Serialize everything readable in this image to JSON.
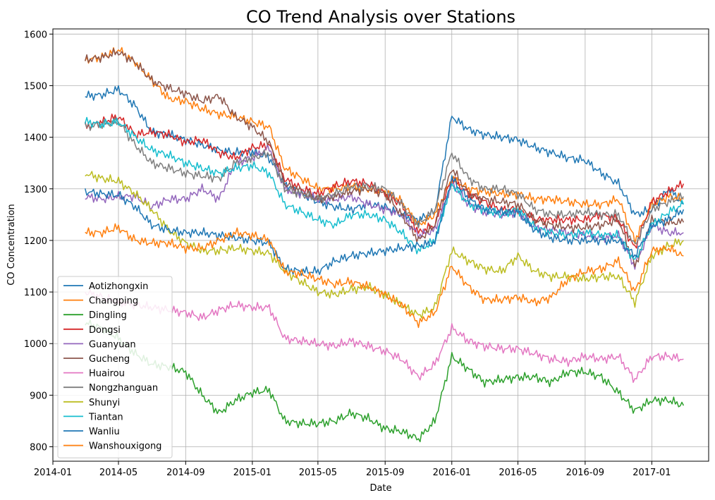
{
  "chart_data": {
    "type": "line",
    "title": "CO Trend Analysis over Stations",
    "xlabel": "Date",
    "ylabel": "CO Concentration",
    "x_ticks": [
      "2014-01",
      "2014-05",
      "2014-09",
      "2015-01",
      "2015-05",
      "2015-09",
      "2016-01",
      "2016-05",
      "2016-09",
      "2017-01"
    ],
    "y_ticks": [
      800,
      900,
      1000,
      1100,
      1200,
      1300,
      1400,
      1500,
      1600
    ],
    "xlim": [
      "2014-01-01",
      "2017-04-15"
    ],
    "ylim": [
      772,
      1610
    ],
    "grid": true,
    "legend_position": "lower-left",
    "x": [
      "2014-03-01",
      "2014-04-01",
      "2014-05-01",
      "2014-06-01",
      "2014-07-01",
      "2014-08-01",
      "2014-09-01",
      "2014-10-01",
      "2014-11-01",
      "2014-12-01",
      "2015-01-01",
      "2015-02-01",
      "2015-03-01",
      "2015-04-01",
      "2015-05-01",
      "2015-06-01",
      "2015-07-01",
      "2015-08-01",
      "2015-09-01",
      "2015-10-01",
      "2015-11-01",
      "2015-12-01",
      "2016-01-01",
      "2016-02-01",
      "2016-03-01",
      "2016-04-01",
      "2016-05-01",
      "2016-06-01",
      "2016-07-01",
      "2016-08-01",
      "2016-09-01",
      "2016-10-01",
      "2016-11-01",
      "2016-12-01",
      "2017-01-01",
      "2017-02-01",
      "2017-02-28"
    ],
    "series": [
      {
        "name": "Aotizhongxin",
        "color": "#1f77b4",
        "values": [
          1480,
          1482,
          1493,
          1460,
          1410,
          1405,
          1395,
          1385,
          1375,
          1370,
          1372,
          1360,
          1310,
          1290,
          1275,
          1265,
          1260,
          1270,
          1265,
          1250,
          1240,
          1255,
          1440,
          1415,
          1405,
          1400,
          1395,
          1380,
          1370,
          1360,
          1355,
          1330,
          1310,
          1250,
          1260,
          1300,
          1270
        ]
      },
      {
        "name": "Changping",
        "color": "#ff7f0e",
        "values": [
          1550,
          1555,
          1570,
          1545,
          1510,
          1475,
          1470,
          1455,
          1445,
          1440,
          1430,
          1420,
          1340,
          1320,
          1300,
          1300,
          1305,
          1300,
          1295,
          1275,
          1230,
          1250,
          1320,
          1300,
          1295,
          1290,
          1290,
          1280,
          1280,
          1275,
          1270,
          1270,
          1280,
          1200,
          1270,
          1285,
          1280
        ]
      },
      {
        "name": "Dingling",
        "color": "#2ca02c",
        "values": [
          1040,
          1030,
          1010,
          980,
          960,
          955,
          945,
          900,
          865,
          890,
          905,
          910,
          850,
          845,
          845,
          850,
          865,
          855,
          835,
          830,
          815,
          850,
          975,
          950,
          925,
          930,
          935,
          935,
          925,
          945,
          945,
          935,
          905,
          870,
          890,
          890,
          880
        ]
      },
      {
        "name": "Dongsi",
        "color": "#d62728",
        "values": [
          1420,
          1430,
          1440,
          1405,
          1410,
          1405,
          1390,
          1395,
          1370,
          1360,
          1380,
          1385,
          1320,
          1300,
          1290,
          1305,
          1315,
          1310,
          1290,
          1270,
          1215,
          1230,
          1320,
          1290,
          1275,
          1260,
          1260,
          1240,
          1240,
          1240,
          1240,
          1250,
          1240,
          1185,
          1275,
          1295,
          1310
        ]
      },
      {
        "name": "Guanyuan",
        "color": "#9467bd",
        "values": [
          1285,
          1280,
          1285,
          1285,
          1265,
          1280,
          1280,
          1300,
          1280,
          1350,
          1360,
          1380,
          1300,
          1290,
          1280,
          1280,
          1285,
          1270,
          1260,
          1250,
          1210,
          1220,
          1310,
          1270,
          1255,
          1250,
          1255,
          1225,
          1220,
          1215,
          1210,
          1205,
          1210,
          1150,
          1230,
          1215,
          1215
        ]
      },
      {
        "name": "Gucheng",
        "color": "#8c564b",
        "values": [
          1550,
          1555,
          1565,
          1545,
          1510,
          1495,
          1485,
          1470,
          1480,
          1440,
          1420,
          1390,
          1310,
          1295,
          1280,
          1285,
          1295,
          1300,
          1290,
          1250,
          1200,
          1230,
          1340,
          1290,
          1280,
          1275,
          1270,
          1240,
          1230,
          1225,
          1225,
          1230,
          1240,
          1150,
          1240,
          1235,
          1235
        ]
      },
      {
        "name": "Huairou",
        "color": "#e377c2",
        "values": [
          1100,
          1090,
          1080,
          1075,
          1070,
          1065,
          1060,
          1050,
          1065,
          1075,
          1070,
          1070,
          1010,
          1005,
          1000,
          995,
          1005,
          995,
          985,
          970,
          935,
          960,
          1030,
          1005,
          995,
          990,
          990,
          980,
          970,
          965,
          975,
          970,
          975,
          930,
          975,
          975,
          970
        ]
      },
      {
        "name": "Nongzhanguan",
        "color": "#7f7f7f",
        "values": [
          1420,
          1425,
          1430,
          1385,
          1350,
          1340,
          1330,
          1325,
          1320,
          1350,
          1360,
          1370,
          1300,
          1290,
          1280,
          1290,
          1305,
          1305,
          1300,
          1270,
          1230,
          1260,
          1370,
          1320,
          1300,
          1300,
          1290,
          1260,
          1250,
          1250,
          1255,
          1250,
          1250,
          1190,
          1260,
          1275,
          1285
        ]
      },
      {
        "name": "Shunyi",
        "color": "#bcbd22",
        "values": [
          1330,
          1320,
          1315,
          1290,
          1260,
          1220,
          1195,
          1180,
          1180,
          1185,
          1180,
          1175,
          1140,
          1120,
          1100,
          1095,
          1105,
          1110,
          1095,
          1075,
          1055,
          1070,
          1180,
          1160,
          1145,
          1140,
          1170,
          1140,
          1130,
          1130,
          1125,
          1130,
          1130,
          1080,
          1170,
          1190,
          1200
        ]
      },
      {
        "name": "Tiantan",
        "color": "#17becf",
        "values": [
          1430,
          1425,
          1430,
          1400,
          1375,
          1365,
          1350,
          1340,
          1330,
          1340,
          1345,
          1330,
          1270,
          1255,
          1240,
          1230,
          1250,
          1250,
          1240,
          1215,
          1180,
          1200,
          1310,
          1270,
          1260,
          1250,
          1260,
          1225,
          1215,
          1210,
          1215,
          1210,
          1210,
          1160,
          1230,
          1255,
          1270
        ]
      },
      {
        "name": "Wanliu",
        "color": "#1f77b4",
        "values": [
          1295,
          1290,
          1288,
          1265,
          1230,
          1220,
          1215,
          1215,
          1210,
          1205,
          1200,
          1195,
          1145,
          1140,
          1140,
          1160,
          1170,
          1175,
          1180,
          1185,
          1190,
          1195,
          1320,
          1280,
          1260,
          1255,
          1255,
          1220,
          1205,
          1200,
          1200,
          1200,
          1200,
          1170,
          1230,
          1240,
          1260
        ]
      },
      {
        "name": "Wanshouxigong",
        "color": "#ff7f0e",
        "values": [
          1215,
          1215,
          1225,
          1200,
          1195,
          1195,
          1185,
          1185,
          1200,
          1215,
          1210,
          1200,
          1140,
          1135,
          1125,
          1115,
          1120,
          1110,
          1095,
          1075,
          1040,
          1060,
          1150,
          1110,
          1085,
          1085,
          1090,
          1080,
          1090,
          1125,
          1140,
          1145,
          1160,
          1100,
          1180,
          1185,
          1170
        ]
      }
    ]
  }
}
